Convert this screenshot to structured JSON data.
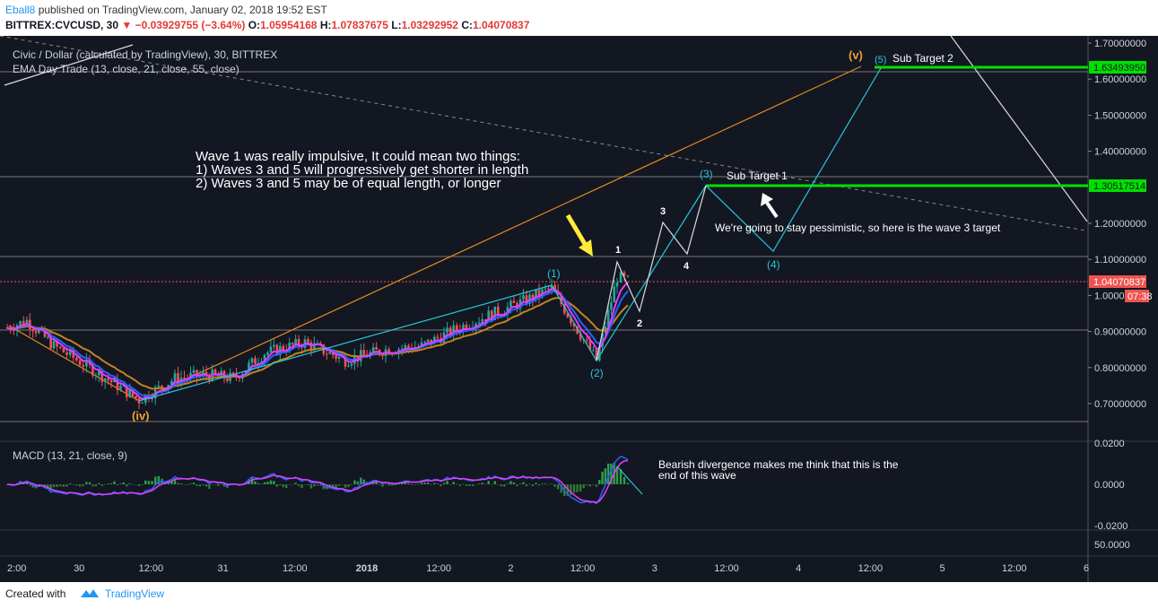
{
  "header": {
    "author": "Eball8",
    "published": "published on TradingView.com, January 02, 2018 19:52 EST",
    "symbol": "BITTREX:CVCUSD, 30",
    "change": "−0.03929755 (−3.64%)",
    "o_label": "O:",
    "o": "1.05954168",
    "h_label": "H:",
    "h": "1.07837675",
    "l_label": "L:",
    "l": "1.03292952",
    "c_label": "C:",
    "c": "1.04070837"
  },
  "legend": {
    "title": "Civic / Dollar (calculated by TradingView), 30, BITTREX",
    "ema": "EMA Day Trade (13, close, 21, close, 55, close)",
    "macd": "MACD (13, 21, close, 9)"
  },
  "annotations": {
    "main_text": [
      "Wave 1 was really impulsive, It could mean two things:",
      "1) Waves 3 and 5 will progressively get shorter in length",
      "2) Waves 3 and 5 may be of equal length, or longer"
    ],
    "sub_target_1": "Sub Target 1",
    "sub_target_2": "Sub Target 2",
    "pessimistic": "We're going to stay pessimistic, so here is the wave 3 target",
    "macd_text": [
      "Bearish divergence makes me think that this is the",
      "end of this wave"
    ]
  },
  "wave_labels": {
    "iv": "(iv)",
    "v": "(v)",
    "w1": "(1)",
    "w2": "(2)",
    "w3": "(3)",
    "w4": "(4)",
    "w5": "(5)",
    "s1": "1",
    "s2": "2",
    "s3": "3",
    "s4": "4"
  },
  "price_axis": {
    "ticks": [
      "1.70000000",
      "1.60000000",
      "1.50000000",
      "1.40000000",
      "1.20000000",
      "1.10000000",
      "1.00000000",
      "0.90000000",
      "0.80000000",
      "0.70000000"
    ],
    "badges": {
      "t2": "1.63493950",
      "t1": "1.30517514",
      "last": "1.04070837",
      "timer": "07:38"
    }
  },
  "macd_axis": {
    "ticks": [
      "0.0200",
      "0.0000",
      "-0.0200"
    ],
    "vol_tick": "50.0000"
  },
  "time_axis": {
    "ticks": [
      "2:00",
      "30",
      "12:00",
      "31",
      "12:00",
      "2018",
      "12:00",
      "2",
      "12:00",
      "3",
      "12:00",
      "4",
      "12:00",
      "5",
      "12:00",
      "6"
    ]
  },
  "footer": {
    "created": "Created with",
    "brand": "TradingView"
  },
  "colors": {
    "bg": "#131722",
    "up": "#26a69a",
    "down": "#ef5350",
    "ema13": "#e040fb",
    "ema21": "#2962ff",
    "ema55": "#c08420",
    "target": "#00e000",
    "wave": "#26c6da",
    "orange": "#f0a030"
  },
  "chart_data": {
    "type": "candlestick",
    "title": "Civic / Dollar (calculated by TradingView), 30, BITTREX",
    "ylim": [
      0.65,
      1.72
    ],
    "x_range": [
      "Dec 29 2017 22:00",
      "Jan 06 2018 00:00"
    ],
    "targets": [
      {
        "name": "Sub Target 1",
        "value": 1.30517514
      },
      {
        "name": "Sub Target 2",
        "value": 1.6349395
      }
    ],
    "last_price": 1.04070837,
    "price_path": [
      [
        "Dec 29 22:00",
        0.91
      ],
      [
        "Dec 30 00:00",
        0.93
      ],
      [
        "Dec 30 06:00",
        0.86
      ],
      [
        "Dec 30 12:00",
        0.8
      ],
      [
        "Dec 30 18:00",
        0.71
      ],
      [
        "Dec 31 00:00",
        0.77
      ],
      [
        "Dec 31 06:00",
        0.78
      ],
      [
        "Dec 31 12:00",
        0.77
      ],
      [
        "Dec 31 18:00",
        0.84
      ],
      [
        "Jan 01 00:00",
        0.87
      ],
      [
        "Jan 01 06:00",
        0.82
      ],
      [
        "Jan 01 12:00",
        0.85
      ],
      [
        "Jan 01 18:00",
        0.86
      ],
      [
        "Jan 02 00:00",
        0.92
      ],
      [
        "Jan 02 06:00",
        0.98
      ],
      [
        "Jan 02 09:00",
        1.02
      ],
      [
        "Jan 02 12:00",
        0.82
      ],
      [
        "Jan 02 15:00",
        1.05
      ],
      [
        "Jan 02 19:00",
        1.04
      ]
    ],
    "wave_projection": [
      {
        "label": "2",
        "value": 0.96
      },
      {
        "label": "3",
        "value": 1.2
      },
      {
        "label": "4",
        "value": 1.11
      },
      {
        "label": "(3)",
        "value": 1.31
      },
      {
        "label": "(4)",
        "value": 1.12
      },
      {
        "label": "(5)",
        "value": 1.63
      }
    ],
    "macd_range": [
      -0.025,
      0.025
    ]
  }
}
